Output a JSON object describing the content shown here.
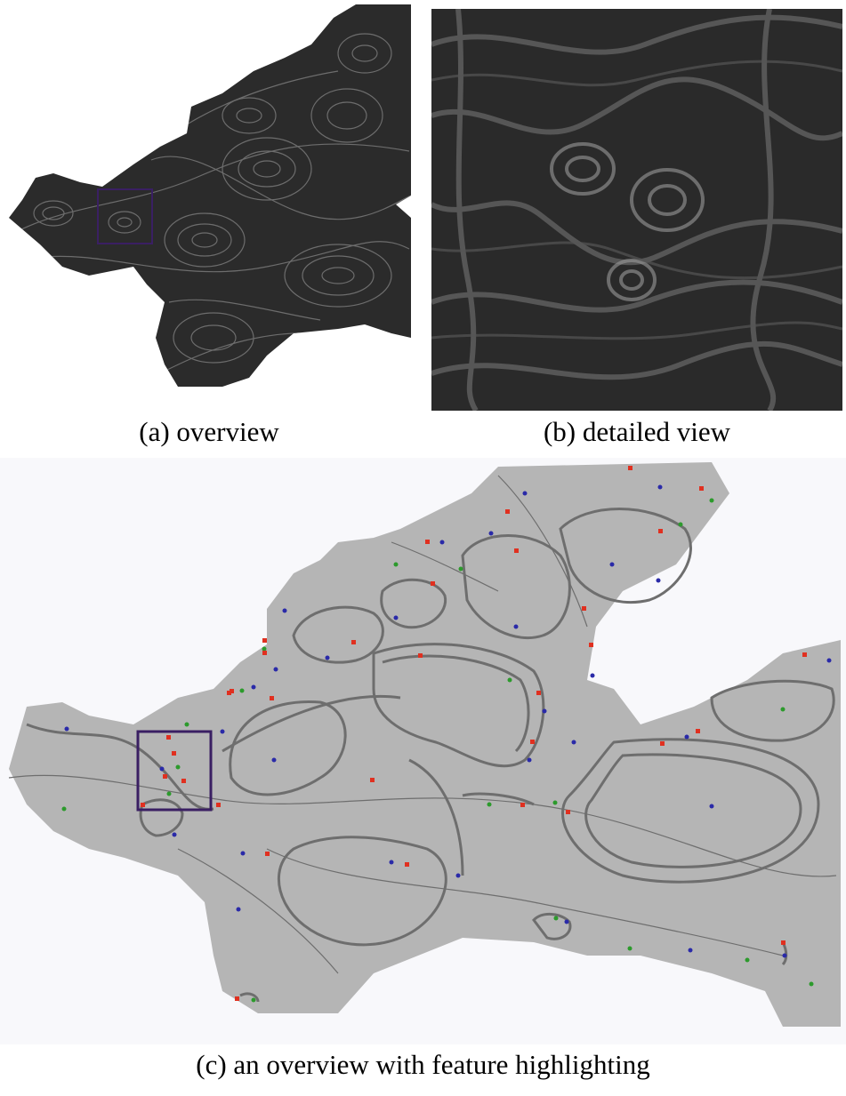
{
  "figure": {
    "captions": {
      "a": "(a) overview",
      "b": "(b) detailed view",
      "c": "(c) an overview with feature highlighting"
    },
    "colors": {
      "lic_dark": "#2b2b2b",
      "lic_stroke": "#8a8a8a",
      "domain_gray": "#b5b5b5",
      "streamline_gray": "#6e6e6e",
      "background": "#f8f8fb",
      "highlight_box": "#3a1f63",
      "source_marker": "#2a2aa8",
      "sink_marker": "#2c9a2c",
      "saddle_marker": "#e03020"
    },
    "markers": {
      "types": [
        "source-icon",
        "sink-icon",
        "saddle-icon"
      ]
    }
  }
}
